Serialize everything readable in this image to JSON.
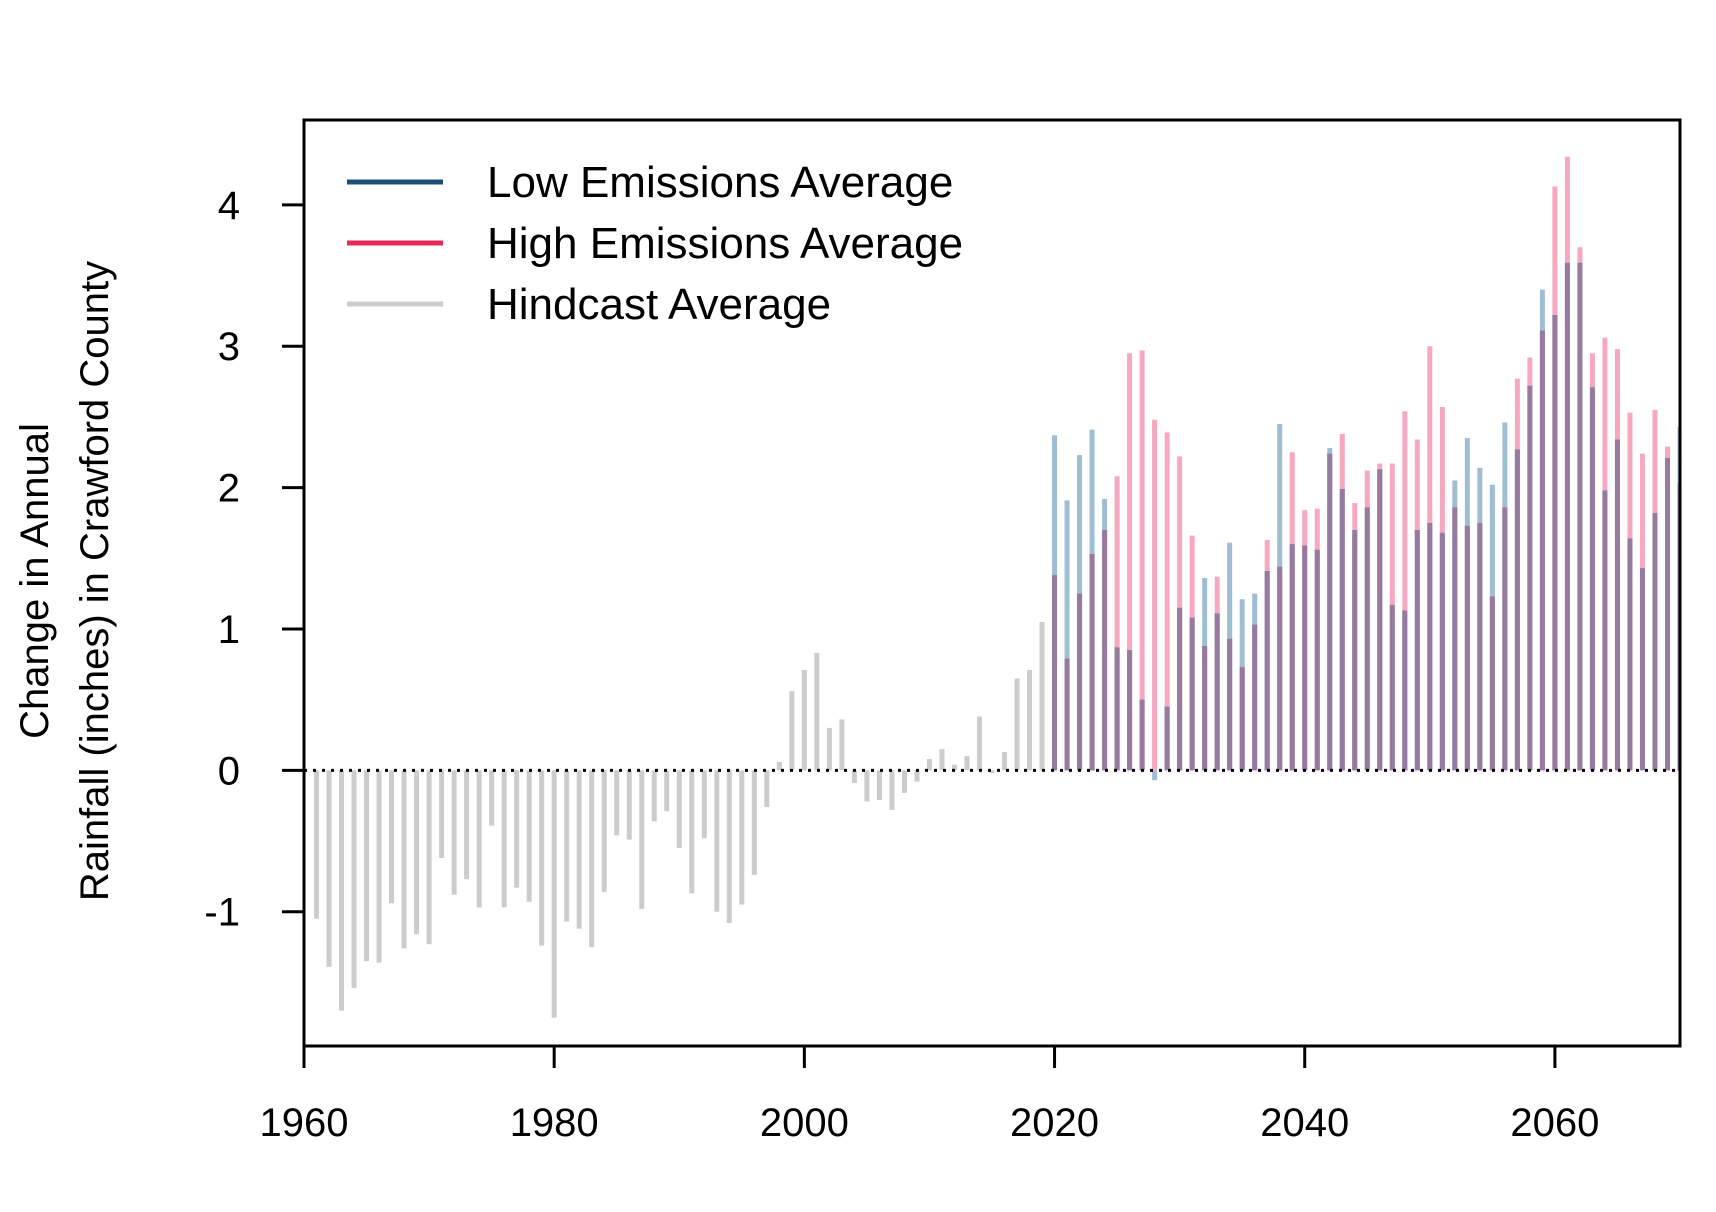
{
  "chart_data": {
    "type": "bar",
    "title": "",
    "xlabel": "",
    "ylabel_lines": [
      "Change in Annual",
      "Rainfall (inches) in Crawford County"
    ],
    "xlim": [
      1960,
      2070
    ],
    "ylim": [
      -1.95,
      4.6
    ],
    "x_ticks": [
      1960,
      1980,
      2000,
      2020,
      2040,
      2060
    ],
    "y_ticks": [
      -1,
      0,
      1,
      2,
      3,
      4
    ],
    "y_tick_labels": [
      "-1",
      "0",
      "1",
      "2",
      "3",
      "4"
    ],
    "baseline": 0,
    "baseline_style": "dotted",
    "grid": false,
    "legend_position": "top-left",
    "colors": {
      "low": "#1b4f7a",
      "high": "#e8275b",
      "hindcast": "#cccccc",
      "low_bar": "#9fbdd3",
      "high_bar": "#f7a8bf",
      "overlap_bar": "#967a9f"
    },
    "series": [
      {
        "name": "Hindcast Average",
        "key": "hindcast",
        "x": [
          1961,
          1962,
          1963,
          1964,
          1965,
          1966,
          1967,
          1968,
          1969,
          1970,
          1971,
          1972,
          1973,
          1974,
          1975,
          1976,
          1977,
          1978,
          1979,
          1980,
          1981,
          1982,
          1983,
          1984,
          1985,
          1986,
          1987,
          1988,
          1989,
          1990,
          1991,
          1992,
          1993,
          1994,
          1995,
          1996,
          1997,
          1998,
          1999,
          2000,
          2001,
          2002,
          2003,
          2004,
          2005,
          2006,
          2007,
          2008,
          2009,
          2010,
          2011,
          2012,
          2013,
          2014,
          2015,
          2016,
          2017,
          2018,
          2019
        ],
        "values": [
          -1.05,
          -1.39,
          -1.7,
          -1.54,
          -1.35,
          -1.36,
          -0.94,
          -1.26,
          -1.16,
          -1.23,
          -0.62,
          -0.88,
          -0.77,
          -0.97,
          -0.39,
          -0.97,
          -0.83,
          -0.93,
          -1.24,
          -1.75,
          -1.07,
          -1.12,
          -1.25,
          -0.86,
          -0.46,
          -0.49,
          -0.98,
          -0.36,
          -0.29,
          -0.55,
          -0.87,
          -0.48,
          -1.0,
          -1.08,
          -0.95,
          -0.74,
          -0.26,
          0.06,
          0.56,
          0.71,
          0.83,
          0.3,
          0.36,
          -0.09,
          -0.22,
          -0.21,
          -0.28,
          -0.16,
          -0.08,
          0.08,
          0.15,
          0.04,
          0.1,
          0.38,
          -0.02,
          0.13,
          0.65,
          0.71,
          1.05
        ]
      },
      {
        "name": "Low Emissions Average",
        "key": "low",
        "x": [
          2020,
          2021,
          2022,
          2023,
          2024,
          2025,
          2026,
          2027,
          2028,
          2029,
          2030,
          2031,
          2032,
          2033,
          2034,
          2035,
          2036,
          2037,
          2038,
          2039,
          2040,
          2041,
          2042,
          2043,
          2044,
          2045,
          2046,
          2047,
          2048,
          2049,
          2050,
          2051,
          2052,
          2053,
          2054,
          2055,
          2056,
          2057,
          2058,
          2059,
          2060,
          2061,
          2062,
          2063,
          2064,
          2065,
          2066,
          2067,
          2068,
          2069,
          2070
        ],
        "values": [
          2.37,
          1.91,
          2.23,
          2.41,
          1.92,
          0.87,
          0.85,
          0.5,
          -0.07,
          0.45,
          1.15,
          1.08,
          1.36,
          1.11,
          1.61,
          1.21,
          1.25,
          1.41,
          2.45,
          1.6,
          1.59,
          1.56,
          2.28,
          1.99,
          1.7,
          1.86,
          2.13,
          1.17,
          1.13,
          1.7,
          1.75,
          1.68,
          2.05,
          2.35,
          2.14,
          2.02,
          2.46,
          2.27,
          2.72,
          3.4,
          3.22,
          3.59,
          3.59,
          2.71,
          1.98,
          2.34,
          1.64,
          1.43,
          1.82,
          2.21,
          2.43
        ]
      },
      {
        "name": "High Emissions Average",
        "key": "high",
        "x": [
          2020,
          2021,
          2022,
          2023,
          2024,
          2025,
          2026,
          2027,
          2028,
          2029,
          2030,
          2031,
          2032,
          2033,
          2034,
          2035,
          2036,
          2037,
          2038,
          2039,
          2040,
          2041,
          2042,
          2043,
          2044,
          2045,
          2046,
          2047,
          2048,
          2049,
          2050,
          2051,
          2052,
          2053,
          2054,
          2055,
          2056,
          2057,
          2058,
          2059,
          2060,
          2061,
          2062,
          2063,
          2064,
          2065,
          2066,
          2067,
          2068,
          2069,
          2070
        ],
        "values": [
          1.38,
          0.79,
          1.25,
          1.53,
          1.7,
          2.08,
          2.95,
          2.97,
          2.48,
          2.39,
          2.22,
          1.66,
          0.88,
          1.37,
          0.93,
          0.73,
          1.03,
          1.63,
          1.44,
          2.25,
          1.84,
          1.85,
          2.24,
          2.38,
          1.89,
          2.12,
          2.17,
          2.17,
          2.54,
          2.34,
          3.0,
          2.57,
          1.86,
          1.73,
          1.75,
          1.23,
          1.86,
          2.77,
          2.92,
          3.11,
          4.13,
          4.34,
          3.7,
          2.95,
          3.06,
          2.98,
          2.53,
          2.24,
          2.55,
          2.29,
          2.03
        ]
      }
    ]
  }
}
